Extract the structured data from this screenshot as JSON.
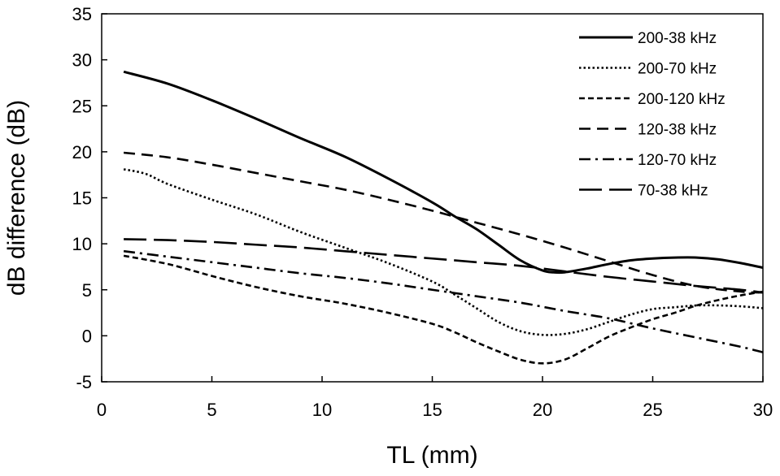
{
  "chart_data": {
    "type": "line",
    "title": "",
    "xlabel": "TL (mm)",
    "ylabel": "dB difference (dB)",
    "xlim": [
      0,
      30
    ],
    "ylim": [
      -5,
      35
    ],
    "xticks": [
      "0",
      "5",
      "10",
      "15",
      "20",
      "25",
      "30"
    ],
    "yticks": [
      "-5",
      "0",
      "5",
      "10",
      "15",
      "20",
      "25",
      "30",
      "35"
    ],
    "grid": false,
    "legend_position": "top-right",
    "series": [
      {
        "name": "200-38 kHz",
        "style": "solid",
        "x": [
          1,
          3,
          5,
          7,
          9,
          11,
          13,
          15,
          16,
          17,
          18,
          19,
          20,
          20.5,
          21,
          22,
          23,
          24,
          25,
          26,
          27,
          28,
          29,
          30
        ],
        "y": [
          28.7,
          27.4,
          25.6,
          23.6,
          21.5,
          19.5,
          17.1,
          14.5,
          13.0,
          11.6,
          9.9,
          8.2,
          7.1,
          6.9,
          6.9,
          7.3,
          7.8,
          8.2,
          8.4,
          8.5,
          8.5,
          8.3,
          7.9,
          7.4
        ]
      },
      {
        "name": "200-70 kHz",
        "style": "dotted",
        "x": [
          1,
          2,
          3,
          5,
          7,
          9,
          11,
          13,
          15,
          16,
          17,
          18,
          19,
          20,
          21,
          22,
          23,
          24,
          25,
          26,
          27,
          28,
          29,
          30
        ],
        "y": [
          18.1,
          17.6,
          16.5,
          14.8,
          13.2,
          11.3,
          9.6,
          7.9,
          5.9,
          4.5,
          3.0,
          1.5,
          0.5,
          0.1,
          0.2,
          0.7,
          1.5,
          2.3,
          2.9,
          3.1,
          3.3,
          3.3,
          3.2,
          3.0
        ]
      },
      {
        "name": "200-120 kHz",
        "style": "short-dash",
        "x": [
          1,
          3,
          5,
          7,
          9,
          11,
          13,
          15,
          16,
          17,
          18,
          19,
          20,
          21,
          22,
          23,
          24,
          25,
          26,
          27,
          28,
          29,
          30
        ],
        "y": [
          8.7,
          7.8,
          6.5,
          5.3,
          4.3,
          3.5,
          2.5,
          1.3,
          0.4,
          -0.7,
          -1.7,
          -2.6,
          -3.0,
          -2.6,
          -1.4,
          -0.1,
          0.9,
          1.8,
          2.5,
          3.3,
          3.9,
          4.4,
          4.8
        ]
      },
      {
        "name": "120-38 kHz",
        "style": "dash",
        "x": [
          1,
          3,
          5,
          7,
          9,
          11,
          13,
          15,
          17,
          19,
          21,
          23,
          25,
          27,
          29,
          30
        ],
        "y": [
          19.9,
          19.4,
          18.6,
          17.7,
          16.8,
          15.9,
          14.8,
          13.6,
          12.3,
          11.0,
          9.6,
          8.1,
          6.6,
          5.4,
          4.8,
          4.7
        ]
      },
      {
        "name": "120-70 kHz",
        "style": "dash-dot",
        "x": [
          1,
          3,
          5,
          7,
          9,
          11,
          13,
          15,
          17,
          19,
          21,
          23,
          25,
          27,
          29,
          30
        ],
        "y": [
          9.2,
          8.6,
          8.0,
          7.4,
          6.8,
          6.3,
          5.7,
          5.0,
          4.3,
          3.6,
          2.7,
          1.9,
          0.8,
          -0.2,
          -1.2,
          -1.8
        ]
      },
      {
        "name": "70-38 kHz",
        "style": "long-dash",
        "x": [
          1,
          3,
          5,
          7,
          9,
          11,
          13,
          15,
          17,
          19,
          21,
          23,
          25,
          27,
          29,
          30
        ],
        "y": [
          10.5,
          10.4,
          10.2,
          9.9,
          9.6,
          9.2,
          8.8,
          8.4,
          8.0,
          7.6,
          7.0,
          6.4,
          5.9,
          5.4,
          5.0,
          4.7
        ]
      }
    ]
  }
}
